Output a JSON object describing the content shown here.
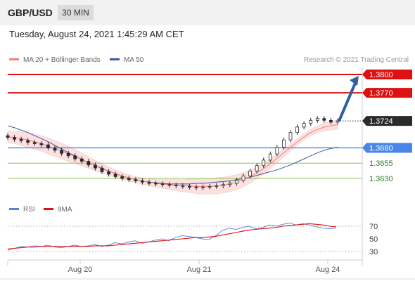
{
  "header": {
    "pair": "GBP/USD",
    "timeframe": "30 MIN",
    "datetime": "Tuesday, August 24, 2021 1:45:29 AM CET"
  },
  "legend": {
    "ma20": "MA 20 + Bollinger Bands",
    "ma50": "MA 50",
    "rsi": "RSI",
    "ma9": "9MA",
    "credit": "Research © 2021 Trading Central"
  },
  "colors": {
    "resistance": "#dd1111",
    "support_line": "#4a86e8",
    "support_green": "#8bc34a",
    "ma20": "#f08080",
    "bands_fill": "#fde0e0",
    "ma50": "#3a5a99",
    "arrow": "#2e5fa1",
    "candle": "#2a2a2a",
    "rsi": "#5b7fd6",
    "rsi_ma": "#dd1111"
  },
  "chart_data": [
    {
      "type": "candlestick",
      "title": "GBP/USD",
      "timeframe": "30 MIN",
      "x_ticks": [
        "Aug 20",
        "Aug 21",
        "Aug 24"
      ],
      "price_levels": [
        {
          "value": 1.38,
          "label": "1.3800",
          "kind": "resistance"
        },
        {
          "value": 1.377,
          "label": "1.3770",
          "kind": "resistance"
        },
        {
          "value": 1.3724,
          "label": "1.3724",
          "kind": "last"
        },
        {
          "value": 1.368,
          "label": "1.3680",
          "kind": "support"
        },
        {
          "value": 1.3655,
          "label": "1.3655",
          "kind": "support"
        },
        {
          "value": 1.363,
          "label": "1.3630",
          "kind": "support"
        }
      ],
      "last_price": 1.3724,
      "forecast_target": 1.38,
      "close_series": [
        1.3697,
        1.3694,
        1.3692,
        1.3689,
        1.3687,
        1.3685,
        1.368,
        1.3676,
        1.3671,
        1.3667,
        1.3662,
        1.3658,
        1.3652,
        1.3647,
        1.3641,
        1.3637,
        1.3633,
        1.363,
        1.3628,
        1.3626,
        1.3624,
        1.3622,
        1.3621,
        1.362,
        1.3619,
        1.3618,
        1.3617,
        1.3616,
        1.3615,
        1.3616,
        1.3617,
        1.3618,
        1.362,
        1.3622,
        1.3627,
        1.3634,
        1.3642,
        1.3651,
        1.366,
        1.367,
        1.3681,
        1.3693,
        1.3705,
        1.3714,
        1.372,
        1.3725,
        1.3728,
        1.3725,
        1.3722,
        1.3724
      ],
      "ma20": [
        1.3698,
        1.3697,
        1.3695,
        1.3693,
        1.369,
        1.3687,
        1.3683,
        1.3679,
        1.3675,
        1.367,
        1.3666,
        1.3661,
        1.3656,
        1.3651,
        1.3647,
        1.3642,
        1.3638,
        1.3634,
        1.3631,
        1.3628,
        1.3626,
        1.3624,
        1.3622,
        1.3621,
        1.362,
        1.3619,
        1.3618,
        1.3618,
        1.3617,
        1.3617,
        1.3617,
        1.3618,
        1.3619,
        1.3621,
        1.3624,
        1.3628,
        1.3633,
        1.3639,
        1.3646,
        1.3654,
        1.3663,
        1.3672,
        1.3681,
        1.369,
        1.3698,
        1.3705,
        1.371,
        1.3714,
        1.3716,
        1.3718
      ],
      "ma50": [
        1.3716,
        1.3713,
        1.3709,
        1.3705,
        1.37,
        1.3695,
        1.369,
        1.3684,
        1.3678,
        1.3672,
        1.3667,
        1.3661,
        1.3656,
        1.3651,
        1.3646,
        1.3642,
        1.3638,
        1.3634,
        1.3631,
        1.3628,
        1.3626,
        1.3624,
        1.3623,
        1.3622,
        1.3621,
        1.3621,
        1.3621,
        1.3621,
        1.3622,
        1.3622,
        1.3623,
        1.3624,
        1.3625,
        1.3626,
        1.3628,
        1.363,
        1.3632,
        1.3635,
        1.3638,
        1.3641,
        1.3644,
        1.3648,
        1.3652,
        1.3657,
        1.3662,
        1.3667,
        1.3672,
        1.3676,
        1.3679,
        1.3681
      ]
    },
    {
      "type": "line",
      "title": "RSI",
      "y_ticks": [
        70,
        50,
        30
      ],
      "reference_lines": [
        70,
        30
      ],
      "series": [
        {
          "name": "RSI",
          "values": [
            32,
            35,
            38,
            37,
            39,
            38,
            40,
            37,
            36,
            38,
            40,
            38,
            39,
            41,
            38,
            40,
            44,
            42,
            45,
            47,
            43,
            45,
            48,
            50,
            47,
            52,
            55,
            54,
            52,
            50,
            49,
            55,
            63,
            67,
            65,
            68,
            70,
            66,
            68,
            72,
            70,
            73,
            75,
            72,
            74,
            72,
            69,
            67,
            66,
            67
          ]
        },
        {
          "name": "9MA",
          "values": [
            34,
            35,
            36,
            37,
            37,
            38,
            38,
            38,
            38,
            38,
            38,
            38,
            38,
            39,
            39,
            39,
            40,
            41,
            42,
            43,
            44,
            45,
            46,
            47,
            48,
            49,
            50,
            51,
            52,
            52,
            53,
            54,
            56,
            58,
            60,
            62,
            64,
            65,
            66,
            67,
            68,
            70,
            71,
            72,
            73,
            74,
            73,
            72,
            70,
            69
          ]
        }
      ]
    }
  ]
}
